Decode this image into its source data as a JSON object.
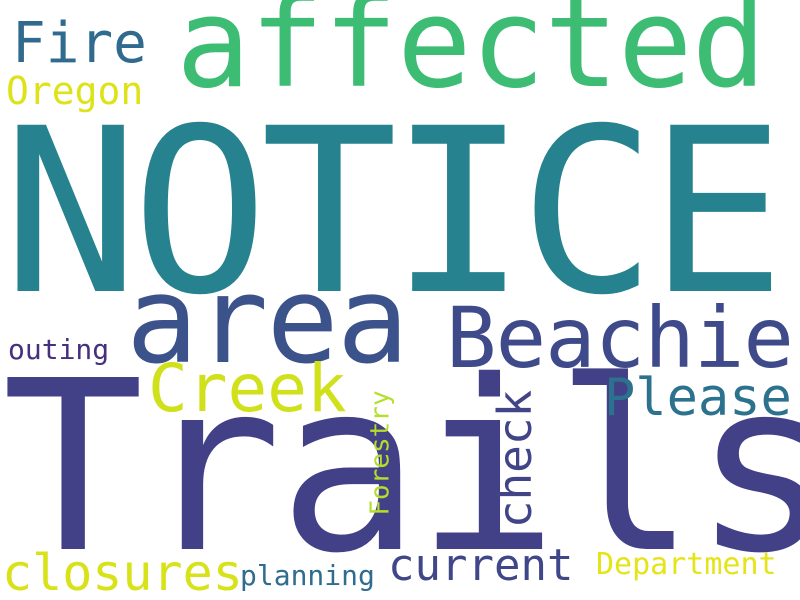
{
  "word_cloud": {
    "words": {
      "notice": {
        "text": "NOTICE",
        "color": "#26828e"
      },
      "trails": {
        "text": "Trails",
        "color": "#424086"
      },
      "affected": {
        "text": "affected",
        "color": "#3dbc74"
      },
      "area": {
        "text": "area",
        "color": "#3b528b"
      },
      "beachie": {
        "text": "Beachie",
        "color": "#3e4a89"
      },
      "creek": {
        "text": "Creek",
        "color": "#d0e11c"
      },
      "please": {
        "text": "Please",
        "color": "#2c728e"
      },
      "fire": {
        "text": "Fire",
        "color": "#306a8e"
      },
      "oregon": {
        "text": "Oregon",
        "color": "#dde318"
      },
      "closures": {
        "text": "closures",
        "color": "#d8e219"
      },
      "current": {
        "text": "current",
        "color": "#3f4788"
      },
      "department": {
        "text": "Department",
        "color": "#e5e419"
      },
      "planning": {
        "text": "planning",
        "color": "#2f6c8e"
      },
      "outing": {
        "text": "outing",
        "color": "#46307e"
      },
      "check": {
        "text": "check",
        "color": "#414487"
      },
      "forestry": {
        "text": "Forestry",
        "color": "#b5de2b"
      }
    }
  }
}
